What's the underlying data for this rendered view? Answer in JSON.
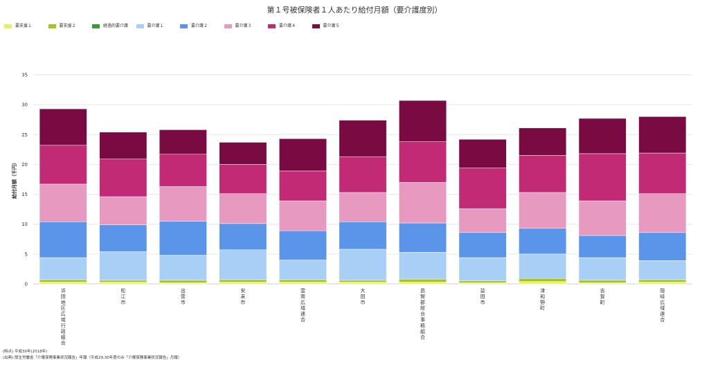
{
  "chart_data": {
    "type": "bar",
    "stacked": true,
    "title": "第１号被保険者１人あたり給付月額（要介護度別）",
    "ylabel": "給付月額（千円）",
    "ylim": [
      0,
      35
    ],
    "yticks": [
      0,
      5,
      10,
      15,
      20,
      25,
      30,
      35
    ],
    "grid": true,
    "legend_position": "top-left",
    "categories": [
      "浜田地区広域行政組合",
      "松江市",
      "出雲市",
      "安来市",
      "雲南広域連合",
      "大田市",
      "邑智郡総合事務組合",
      "益田市",
      "津和野町",
      "吉賀町",
      "隠岐広域連合"
    ],
    "series": [
      {
        "name": "要支援１",
        "color": "#e5f25e",
        "values": [
          0.3,
          0.3,
          0.2,
          0.3,
          0.3,
          0.3,
          0.3,
          0.2,
          0.4,
          0.2,
          0.3
        ]
      },
      {
        "name": "要支援２",
        "color": "#a9c21c",
        "values": [
          0.4,
          0.3,
          0.4,
          0.4,
          0.4,
          0.3,
          0.5,
          0.3,
          0.5,
          0.4,
          0.4
        ]
      },
      {
        "name": "経過的要介護",
        "color": "#2ea12e",
        "values": [
          0,
          0,
          0,
          0,
          0,
          0,
          0,
          0,
          0,
          0,
          0
        ]
      },
      {
        "name": "要介護１",
        "color": "#a8d0f6",
        "values": [
          3.7,
          4.8,
          4.2,
          5.0,
          3.3,
          5.2,
          4.5,
          3.9,
          4.1,
          3.8,
          3.2
        ]
      },
      {
        "name": "要介護２",
        "color": "#5b95ea",
        "values": [
          6.0,
          4.5,
          5.7,
          4.4,
          4.9,
          4.6,
          4.9,
          4.2,
          4.3,
          3.7,
          4.7
        ]
      },
      {
        "name": "要介護３",
        "color": "#e899bf",
        "values": [
          6.3,
          4.7,
          5.8,
          5.0,
          5.0,
          4.9,
          6.8,
          4.0,
          6.0,
          5.8,
          6.5
        ]
      },
      {
        "name": "要介護４",
        "color": "#c32a76",
        "values": [
          6.5,
          6.3,
          5.4,
          4.9,
          5.0,
          6.0,
          6.8,
          6.8,
          6.2,
          7.9,
          6.8
        ]
      },
      {
        "name": "要介護５",
        "color": "#7a0b42",
        "values": [
          6.1,
          4.5,
          4.1,
          3.7,
          5.4,
          6.1,
          6.9,
          4.8,
          4.6,
          5.9,
          6.1
        ]
      }
    ]
  },
  "footnotes": {
    "line1": "(時点) 平成30年(2018年)",
    "line2": "(出典) 厚生労働省「介護保険事業状況報告」年報（平成29,30年度のみ「介護保険事業状況報告」月報）"
  }
}
